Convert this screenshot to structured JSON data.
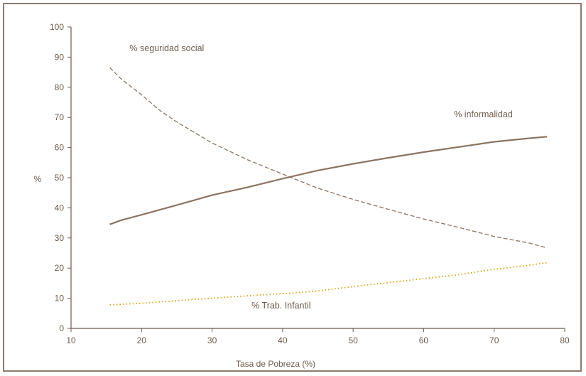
{
  "chart_data": {
    "type": "line",
    "title": "",
    "xlabel": "Tasa de Pobreza (%)",
    "ylabel": "%",
    "xlim": [
      10,
      80
    ],
    "ylim": [
      0,
      100
    ],
    "x_ticks": [
      10,
      20,
      30,
      40,
      50,
      60,
      70,
      80
    ],
    "y_ticks": [
      0,
      10,
      20,
      30,
      40,
      50,
      60,
      70,
      80,
      90,
      100
    ],
    "grid": false,
    "legend": "none",
    "series": [
      {
        "name": "% informalidad",
        "style": "solid",
        "color": "#8a7462",
        "points": [
          [
            15.5,
            34.5
          ],
          [
            17,
            35.8
          ],
          [
            20,
            37.7
          ],
          [
            25,
            40.9
          ],
          [
            30,
            44.2
          ],
          [
            35,
            46.8
          ],
          [
            40,
            49.7
          ],
          [
            45,
            52.4
          ],
          [
            50,
            54.6
          ],
          [
            55,
            56.6
          ],
          [
            60,
            58.5
          ],
          [
            65,
            60.2
          ],
          [
            70,
            61.9
          ],
          [
            75,
            63.1
          ],
          [
            77.5,
            63.6
          ]
        ]
      },
      {
        "name": "% seguridad social",
        "style": "dashed",
        "color": "#8a7462",
        "points": [
          [
            15.5,
            86.5
          ],
          [
            17,
            83
          ],
          [
            20,
            77.5
          ],
          [
            22.5,
            72.5
          ],
          [
            25,
            68.5
          ],
          [
            30,
            61.5
          ],
          [
            35,
            56
          ],
          [
            40,
            51.2
          ],
          [
            45,
            46.5
          ],
          [
            50,
            42.8
          ],
          [
            55,
            39.5
          ],
          [
            60,
            36.3
          ],
          [
            65,
            33.5
          ],
          [
            70,
            30.5
          ],
          [
            75,
            28.3
          ],
          [
            77.5,
            26.7
          ]
        ]
      },
      {
        "name": "% Trab. Infantil",
        "style": "dotted",
        "color": "#d9a81e",
        "points": [
          [
            15.5,
            7.8
          ],
          [
            20,
            8.3
          ],
          [
            25,
            9.2
          ],
          [
            30,
            10
          ],
          [
            35,
            10.8
          ],
          [
            40,
            11.5
          ],
          [
            45,
            12.4
          ],
          [
            50,
            13.9
          ],
          [
            55,
            15.2
          ],
          [
            60,
            16.5
          ],
          [
            65,
            17.8
          ],
          [
            70,
            19.6
          ],
          [
            75,
            21
          ],
          [
            77.5,
            21.8
          ]
        ]
      }
    ],
    "annotations": [
      {
        "text": "% seguridad social",
        "x": 18.3,
        "y": 92,
        "series": 1
      },
      {
        "text": "% informalidad",
        "x": 64.3,
        "y": 70.1,
        "series": 0
      },
      {
        "text": "% Trab. Infantil",
        "x": 35.6,
        "y": 6.6,
        "series": 2
      }
    ]
  }
}
